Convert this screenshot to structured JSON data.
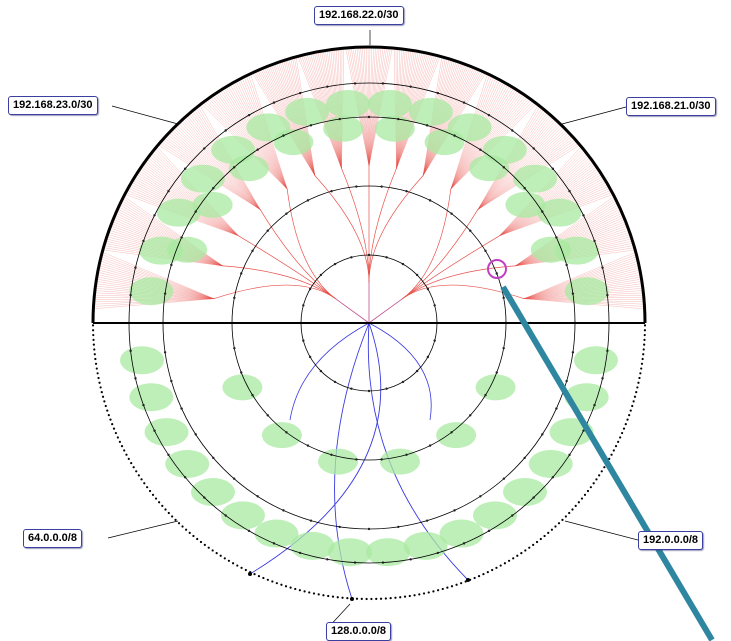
{
  "labels": {
    "top": "192.168.22.0/30",
    "upper_left": "192.168.23.0/30",
    "upper_right": "192.168.21.0/30",
    "lower_left": "64.0.0.0/8",
    "lower_right": "192.0.0.0/8",
    "bottom": "128.0.0.0/8"
  },
  "colors": {
    "upper_tree": "#e8504a",
    "lower_tree": "#3a3ae0",
    "cluster_fill": "#a8eaa0",
    "highlight": "#c040c0",
    "pointer": "#2e86a0",
    "ring": "#000000",
    "label_border": "#3a3fa0"
  }
}
